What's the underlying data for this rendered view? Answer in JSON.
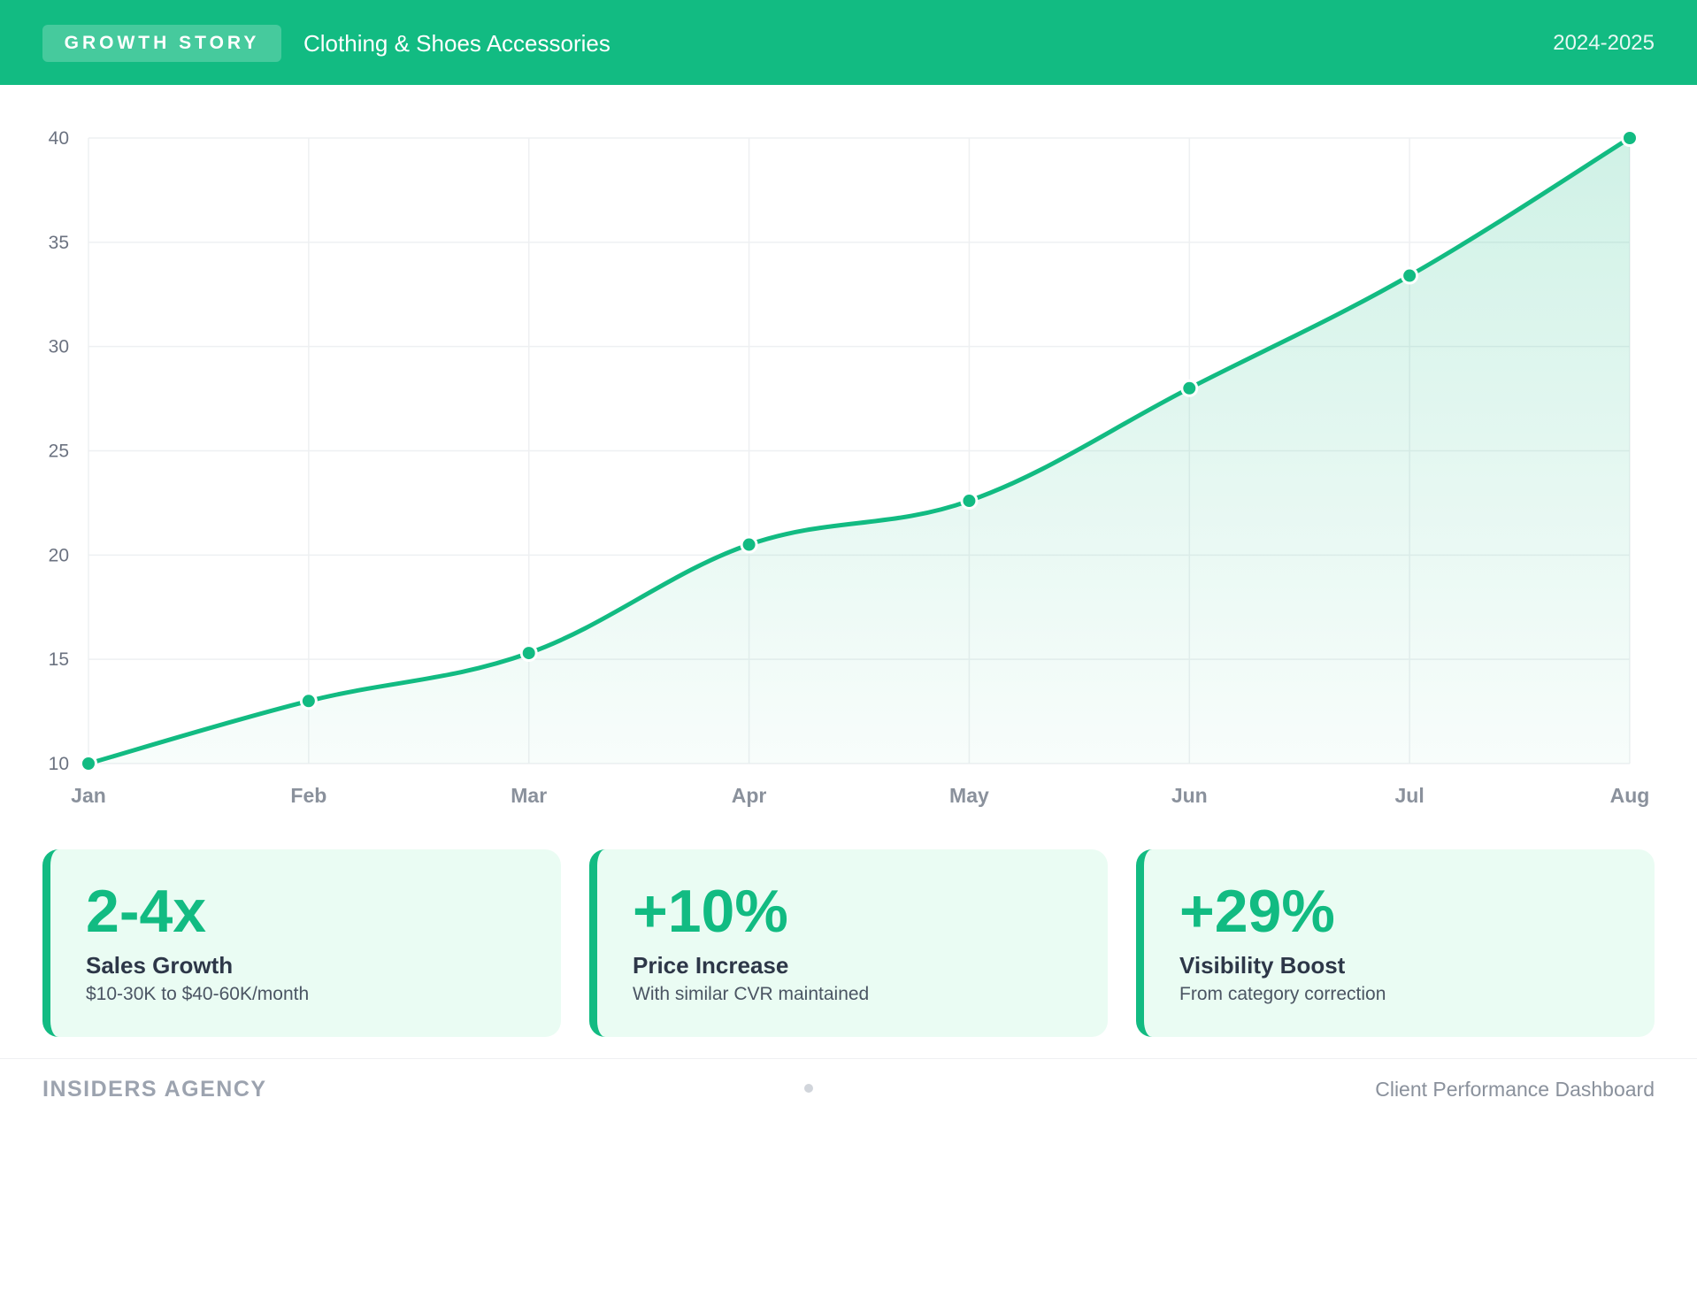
{
  "header": {
    "badge": "GROWTH STORY",
    "title": "Clothing & Shoes Accessories",
    "year": "2024-2025"
  },
  "chart_data": {
    "type": "area",
    "categories": [
      "Jan",
      "Feb",
      "Mar",
      "Apr",
      "May",
      "Jun",
      "Jul",
      "Aug"
    ],
    "series": [
      {
        "values": [
          10,
          13,
          15.3,
          20.5,
          22.6,
          28,
          33.4,
          40
        ]
      }
    ],
    "ylim": [
      10,
      40
    ],
    "yticks": [
      10,
      15,
      20,
      25,
      30,
      35,
      40
    ],
    "grid": true,
    "legend": "none",
    "line_color": "#12bb82",
    "fill_color": "#12bb82"
  },
  "cards": [
    {
      "value": "2-4x",
      "label": "Sales Growth",
      "desc": "$10-30K to $40-60K/month"
    },
    {
      "value": "+10%",
      "label": "Price Increase",
      "desc": "With similar CVR maintained"
    },
    {
      "value": "+29%",
      "label": "Visibility Boost",
      "desc": "From category correction"
    }
  ],
  "footer": {
    "agency": "INSIDERS AGENCY",
    "subtitle": "Client Performance Dashboard"
  }
}
